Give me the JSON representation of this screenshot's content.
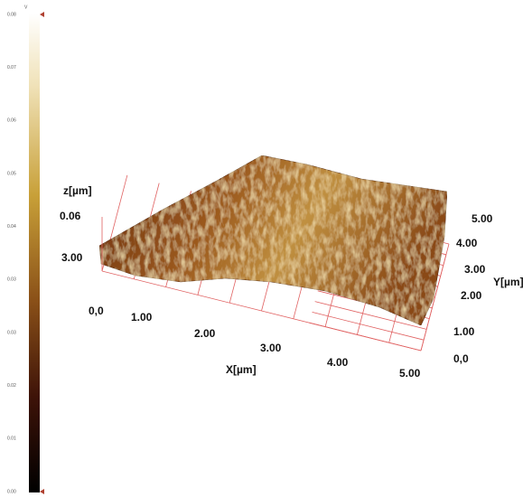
{
  "colorbar": {
    "unit": "V",
    "ticks": [
      "0.08",
      "0.07",
      "0.06",
      "0.05",
      "0.04",
      "0.03",
      "0.03",
      "0.02",
      "0.01",
      "0.00"
    ]
  },
  "z_axis": {
    "label": "z[µm]",
    "ticks": [
      "0.06",
      "3.00"
    ]
  },
  "x_axis": {
    "label": "X[µm]",
    "ticks": [
      "0,0",
      "1.00",
      "2.00",
      "3.00",
      "4.00",
      "5.00"
    ]
  },
  "y_axis": {
    "label": "Y[µm]",
    "ticks": [
      "0,0",
      "1.00",
      "2.00",
      "3.00",
      "4.00",
      "5.00"
    ]
  }
}
